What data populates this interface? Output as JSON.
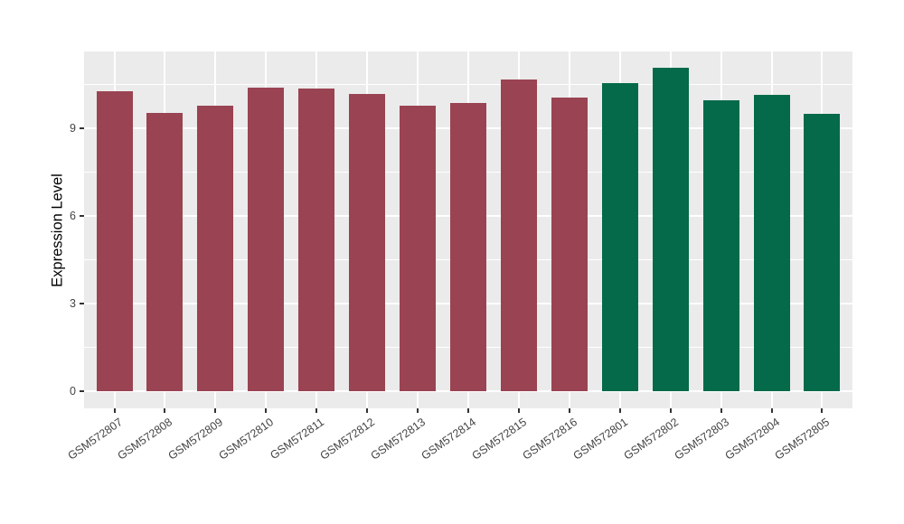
{
  "figure": {
    "background": "#FFFFFF",
    "y_axis_title": "Expression Level"
  },
  "chart_data": {
    "type": "bar",
    "title": "",
    "xlabel": "",
    "ylabel": "Expression Level",
    "categories": [
      "GSM572807",
      "GSM572808",
      "GSM572809",
      "GSM572810",
      "GSM572811",
      "GSM572812",
      "GSM572813",
      "GSM572814",
      "GSM572815",
      "GSM572816",
      "GSM572801",
      "GSM572802",
      "GSM572803",
      "GSM572804",
      "GSM572805"
    ],
    "values": [
      10.27,
      9.53,
      9.77,
      10.39,
      10.36,
      10.18,
      9.77,
      9.87,
      10.65,
      10.05,
      10.55,
      11.07,
      9.95,
      10.14,
      9.49
    ],
    "groups": [
      "red",
      "red",
      "red",
      "red",
      "red",
      "red",
      "red",
      "red",
      "red",
      "red",
      "green",
      "green",
      "green",
      "green",
      "green"
    ],
    "group_colors": {
      "red": "#9A4352",
      "green": "#046A49"
    },
    "yticks": [
      0,
      3,
      6,
      9
    ],
    "yticks_minor": [
      1.5,
      4.5,
      7.5,
      10.5
    ],
    "ylim": [
      -0.58,
      11.62
    ],
    "grid": true,
    "legend_position": "none",
    "panel_background": "#EBEBEB",
    "gridline_color": "#FFFFFF",
    "tick_mark_color": "#333333",
    "tick_label_color": "#444444",
    "x_tick_rotation_deg": 35
  }
}
